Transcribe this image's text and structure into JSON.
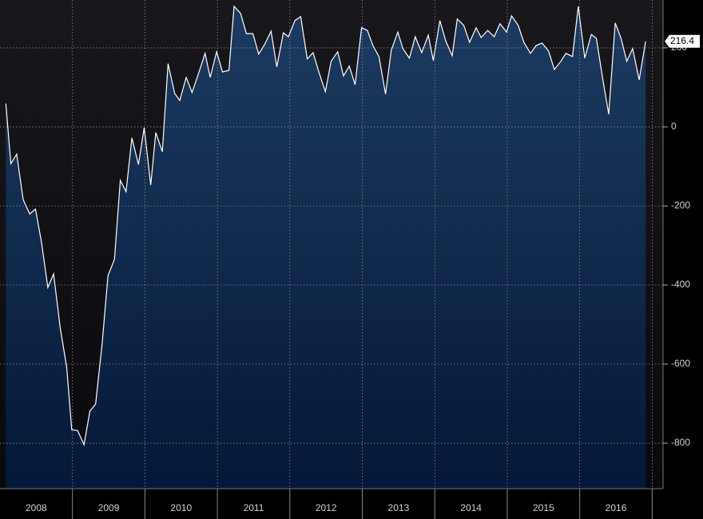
{
  "chart_data": {
    "type": "area",
    "x": [
      2008.08,
      2008.15,
      2008.23,
      2008.32,
      2008.41,
      2008.49,
      2008.57,
      2008.66,
      2008.74,
      2008.83,
      2008.92,
      2008.99,
      2009.07,
      2009.16,
      2009.24,
      2009.32,
      2009.41,
      2009.49,
      2009.58,
      2009.66,
      2009.74,
      2009.82,
      2009.91,
      2009.99,
      2010.08,
      2010.15,
      2010.24,
      2010.32,
      2010.41,
      2010.48,
      2010.57,
      2010.65,
      2010.74,
      2010.83,
      2010.9,
      2010.99,
      2011.07,
      2011.16,
      2011.23,
      2011.32,
      2011.4,
      2011.49,
      2011.57,
      2011.65,
      2011.74,
      2011.82,
      2011.91,
      2011.98,
      2012.07,
      2012.15,
      2012.24,
      2012.32,
      2012.4,
      2012.49,
      2012.57,
      2012.66,
      2012.74,
      2012.82,
      2012.9,
      2012.99,
      2013.07,
      2013.15,
      2013.23,
      2013.32,
      2013.4,
      2013.49,
      2013.56,
      2013.65,
      2013.73,
      2013.82,
      2013.91,
      2013.98,
      2014.07,
      2014.15,
      2014.24,
      2014.31,
      2014.4,
      2014.48,
      2014.57,
      2014.64,
      2014.73,
      2014.82,
      2014.9,
      2014.99,
      2015.06,
      2015.15,
      2015.23,
      2015.32,
      2015.4,
      2015.48,
      2015.57,
      2015.65,
      2015.74,
      2015.81,
      2015.9,
      2015.98,
      2016.07,
      2016.16,
      2016.23,
      2016.32,
      2016.4,
      2016.49,
      2016.57,
      2016.65,
      2016.73,
      2016.82,
      2016.91
    ],
    "series": [
      {
        "color": "#ffffff",
        "fill_top": "#1d3b61",
        "fill_bottom": "#041838",
        "values": [
          59,
          -93,
          -69,
          -184,
          -220,
          -208,
          -289,
          -406,
          -372,
          -507,
          -608,
          -766,
          -768,
          -804,
          -719,
          -701,
          -547,
          -376,
          -335,
          -135,
          -164,
          -28,
          -95,
          -2,
          -147,
          -14,
          -63,
          160,
          85,
          67,
          125,
          87,
          135,
          186,
          125,
          190,
          139,
          143,
          305,
          287,
          236,
          236,
          184,
          208,
          242,
          152,
          238,
          228,
          269,
          279,
          172,
          188,
          139,
          89,
          166,
          190,
          129,
          154,
          107,
          251,
          244,
          204,
          178,
          83,
          194,
          240,
          198,
          174,
          228,
          188,
          232,
          168,
          269,
          218,
          180,
          273,
          257,
          214,
          251,
          226,
          244,
          228,
          261,
          240,
          281,
          257,
          214,
          186,
          206,
          212,
          192,
          145,
          166,
          186,
          178,
          305,
          174,
          234,
          224,
          119,
          32,
          263,
          224,
          166,
          198,
          119,
          216.4
        ]
      }
    ],
    "xlim": [
      2008,
      2017.15
    ],
    "xticks": [
      {
        "value": 2008.5,
        "label": "2008"
      },
      {
        "value": 2009.5,
        "label": "2009"
      },
      {
        "value": 2010.5,
        "label": "2010"
      },
      {
        "value": 2011.5,
        "label": "2011"
      },
      {
        "value": 2012.5,
        "label": "2012"
      },
      {
        "value": 2013.5,
        "label": "2013"
      },
      {
        "value": 2014.5,
        "label": "2014"
      },
      {
        "value": 2015.5,
        "label": "2015"
      },
      {
        "value": 2016.5,
        "label": "2016"
      }
    ],
    "xgridlines": [
      2009,
      2010,
      2011,
      2012,
      2013,
      2014,
      2015,
      2016,
      2017
    ],
    "ylim": [
      -915,
      321
    ],
    "yticks": [
      -800,
      -600,
      -400,
      -200,
      0,
      200
    ],
    "grid": true
  }
}
